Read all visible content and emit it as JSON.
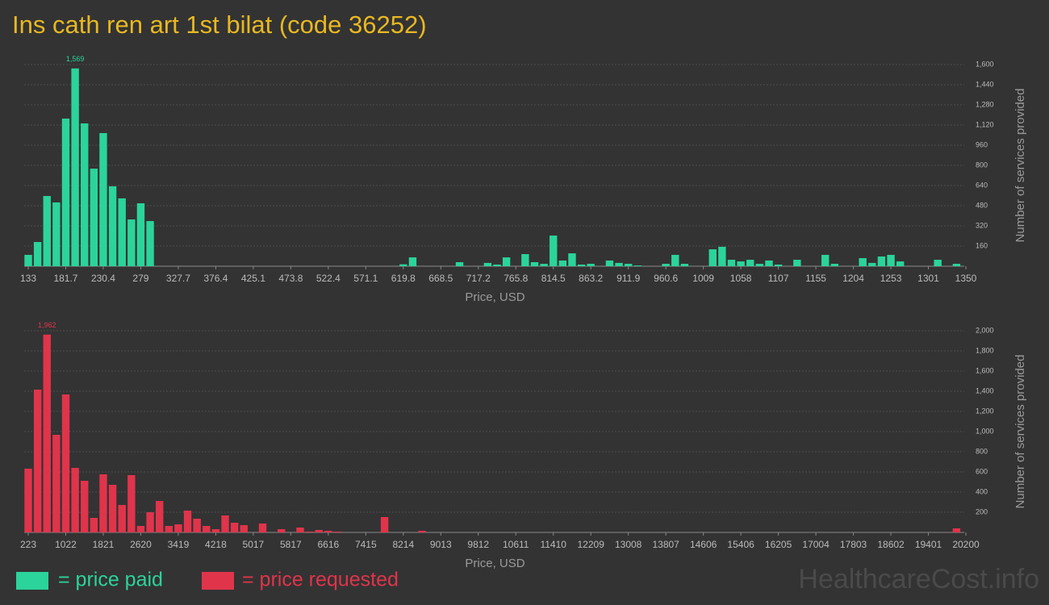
{
  "title": "Ins cath ren art 1st bilat (code 36252)",
  "watermark": "HealthcareCost.info",
  "chart_data": [
    {
      "type": "bar",
      "xlabel": "Price, USD",
      "ylabel": "Number of services provided",
      "grid": true,
      "categories": [
        "133",
        null,
        null,
        null,
        "181.7",
        null,
        null,
        null,
        "230.4",
        null,
        null,
        null,
        "279",
        null,
        null,
        null,
        "327.7",
        null,
        null,
        null,
        "376.4",
        null,
        null,
        null,
        "425.1",
        null,
        null,
        null,
        "473.8",
        null,
        null,
        null,
        "522.4",
        null,
        null,
        null,
        "571.1",
        null,
        null,
        null,
        "619.8",
        null,
        null,
        null,
        "668.5",
        null,
        null,
        null,
        "717.2",
        null,
        null,
        null,
        "765.8",
        null,
        null,
        null,
        "814.5",
        null,
        null,
        null,
        "863.2",
        null,
        null,
        null,
        "911.9",
        null,
        null,
        null,
        "960.6",
        null,
        null,
        null,
        "1009",
        null,
        null,
        null,
        "1058",
        null,
        null,
        null,
        "1107",
        null,
        null,
        null,
        "1155",
        null,
        null,
        null,
        "1204",
        null,
        null,
        null,
        "1253",
        null,
        null,
        null,
        "1301",
        null,
        null,
        null,
        "1350"
      ],
      "series": [
        {
          "name": "= price paid",
          "color": "#2bd49a",
          "values": [
            90,
            192,
            557,
            506,
            1171,
            1569,
            1133,
            774,
            1056,
            634,
            538,
            371,
            499,
            358,
            0,
            0,
            0,
            0,
            0,
            0,
            0,
            0,
            0,
            0,
            0,
            0,
            0,
            0,
            0,
            0,
            0,
            0,
            0,
            0,
            0,
            0,
            0,
            0,
            0,
            0,
            15,
            70,
            0,
            0,
            0,
            0,
            32,
            0,
            0,
            26,
            13,
            70,
            0,
            96,
            32,
            19,
            243,
            45,
            102,
            13,
            19,
            0,
            45,
            26,
            19,
            6,
            0,
            0,
            19,
            90,
            19,
            0,
            0,
            134,
            154,
            51,
            38,
            51,
            19,
            45,
            13,
            0,
            51,
            0,
            0,
            90,
            19,
            0,
            0,
            64,
            26,
            77,
            90,
            38,
            0,
            0,
            0,
            51,
            0,
            19,
            0
          ],
          "value_labels": [
            null,
            null,
            null,
            null,
            null,
            "1,569",
            null,
            null,
            null,
            null,
            null,
            null,
            null,
            null,
            null,
            null,
            null,
            null,
            null,
            null,
            null,
            null,
            null,
            null,
            null,
            null,
            null,
            null,
            null,
            null,
            null,
            null,
            null,
            null,
            null,
            null,
            null,
            null,
            null,
            null,
            null,
            null,
            null,
            null,
            null,
            null,
            null,
            null,
            null,
            null,
            null,
            null,
            null,
            null,
            null,
            null,
            null,
            null,
            null,
            null,
            null,
            null,
            null,
            null,
            null,
            null,
            null,
            null,
            null,
            null,
            null,
            null,
            null,
            null,
            null,
            null,
            null,
            null,
            null,
            null,
            null,
            null,
            null,
            null,
            null,
            null,
            null,
            null,
            null,
            null,
            null,
            null,
            null,
            null,
            null,
            null,
            null,
            null,
            null,
            null,
            null
          ]
        }
      ],
      "ylim": [
        0,
        1600
      ],
      "yticks": [
        160,
        320,
        480,
        640,
        800,
        960,
        {
          "value": 1120,
          "label": "1,120"
        },
        {
          "value": 1280,
          "label": "1,280"
        },
        {
          "value": 1440,
          "label": "1,440"
        },
        {
          "value": 1600,
          "label": "1,600"
        }
      ]
    },
    {
      "type": "bar",
      "xlabel": "Price, USD",
      "ylabel": "Number of services provided",
      "grid": true,
      "categories": [
        "223",
        null,
        null,
        null,
        "1022",
        null,
        null,
        null,
        "1821",
        null,
        null,
        null,
        "2620",
        null,
        null,
        null,
        "3419",
        null,
        null,
        null,
        "4218",
        null,
        null,
        null,
        "5017",
        null,
        null,
        null,
        "5817",
        null,
        null,
        null,
        "6616",
        null,
        null,
        null,
        "7415",
        null,
        null,
        null,
        "8214",
        null,
        null,
        null,
        "9013",
        null,
        null,
        null,
        "9812",
        null,
        null,
        null,
        "10611",
        null,
        null,
        null,
        "11410",
        null,
        null,
        null,
        "12209",
        null,
        null,
        null,
        "13008",
        null,
        null,
        null,
        "13807",
        null,
        null,
        null,
        "14606",
        null,
        null,
        null,
        "15406",
        null,
        null,
        null,
        "16205",
        null,
        null,
        null,
        "17004",
        null,
        null,
        null,
        "17803",
        null,
        null,
        null,
        "18602",
        null,
        null,
        null,
        "19401",
        null,
        null,
        null,
        "20200"
      ],
      "series": [
        {
          "name": "= price requested",
          "color": "#e0344b",
          "values": [
            632,
            1416,
            1962,
            968,
            1368,
            640,
            512,
            144,
            576,
            472,
            272,
            568,
            64,
            200,
            312,
            64,
            80,
            216,
            136,
            64,
            32,
            168,
            96,
            72,
            0,
            88,
            0,
            32,
            0,
            48,
            8,
            24,
            16,
            8,
            0,
            0,
            0,
            0,
            152,
            0,
            0,
            0,
            16,
            0,
            0,
            0,
            0,
            0,
            0,
            0,
            0,
            0,
            0,
            0,
            0,
            0,
            0,
            0,
            0,
            0,
            0,
            0,
            0,
            0,
            0,
            0,
            0,
            0,
            0,
            0,
            0,
            0,
            0,
            0,
            0,
            0,
            0,
            0,
            0,
            0,
            0,
            0,
            0,
            0,
            0,
            0,
            0,
            0,
            0,
            0,
            0,
            0,
            0,
            0,
            0,
            0,
            0,
            0,
            0,
            40,
            0
          ],
          "value_labels": [
            null,
            null,
            "1,962",
            null,
            null,
            null,
            null,
            null,
            null,
            null,
            null,
            null,
            null,
            null,
            null,
            null,
            null,
            null,
            null,
            null,
            null,
            null,
            null,
            null,
            null,
            null,
            null,
            null,
            null,
            null,
            null,
            null,
            null,
            null,
            null,
            null,
            null,
            null,
            null,
            null,
            null,
            null,
            null,
            null,
            null,
            null,
            null,
            null,
            null,
            null,
            null,
            null,
            null,
            null,
            null,
            null,
            null,
            null,
            null,
            null,
            null,
            null,
            null,
            null,
            null,
            null,
            null,
            null,
            null,
            null,
            null,
            null,
            null,
            null,
            null,
            null,
            null,
            null,
            null,
            null,
            null,
            null,
            null,
            null,
            null,
            null,
            null,
            null,
            null,
            null,
            null,
            null,
            null,
            null,
            null,
            null,
            null,
            null,
            null,
            null,
            null
          ]
        }
      ],
      "ylim": [
        0,
        2000
      ],
      "yticks": [
        200,
        400,
        600,
        800,
        {
          "value": 1000,
          "label": "1,000"
        },
        {
          "value": 1200,
          "label": "1,200"
        },
        {
          "value": 1400,
          "label": "1,400"
        },
        {
          "value": 1600,
          "label": "1,600"
        },
        {
          "value": 1800,
          "label": "1,800"
        },
        {
          "value": 2000,
          "label": "2,000"
        }
      ]
    }
  ]
}
